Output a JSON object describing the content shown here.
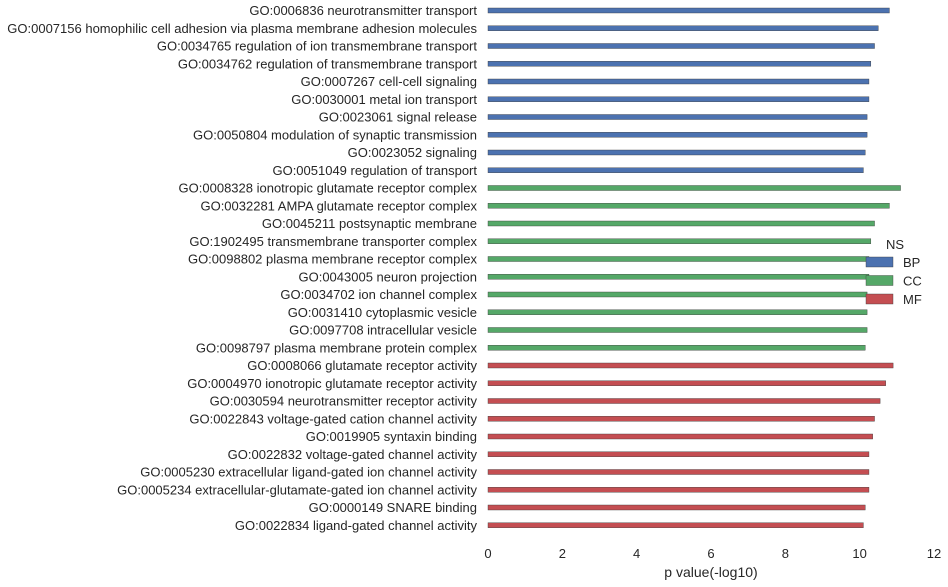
{
  "chart_data": {
    "type": "bar",
    "orientation": "horizontal",
    "title": "",
    "xlabel": "p value(-log10)",
    "ylabel": "",
    "xlim": [
      0,
      12
    ],
    "xticks": [
      "0",
      "2",
      "4",
      "6",
      "8",
      "10",
      "12"
    ],
    "grid": false,
    "legend": {
      "title": "NS",
      "placement": "right",
      "entries": [
        {
          "name": "BP",
          "color": "#4c72b0"
        },
        {
          "name": "CC",
          "color": "#55a868"
        },
        {
          "name": "MF",
          "color": "#c44e52"
        }
      ]
    },
    "categories": [
      {
        "label": "GO:0006836 neurotransmitter transport",
        "value": 10.8,
        "group": "BP"
      },
      {
        "label": "GO:0007156 homophilic cell adhesion via plasma membrane adhesion molecules",
        "value": 10.5,
        "group": "BP"
      },
      {
        "label": "GO:0034765 regulation of ion transmembrane transport",
        "value": 10.4,
        "group": "BP"
      },
      {
        "label": "GO:0034762 regulation of transmembrane transport",
        "value": 10.3,
        "group": "BP"
      },
      {
        "label": "GO:0007267 cell-cell signaling",
        "value": 10.25,
        "group": "BP"
      },
      {
        "label": "GO:0030001 metal ion transport",
        "value": 10.25,
        "group": "BP"
      },
      {
        "label": "GO:0023061 signal release",
        "value": 10.2,
        "group": "BP"
      },
      {
        "label": "GO:0050804 modulation of synaptic transmission",
        "value": 10.2,
        "group": "BP"
      },
      {
        "label": "GO:0023052 signaling",
        "value": 10.15,
        "group": "BP"
      },
      {
        "label": "GO:0051049 regulation of transport",
        "value": 10.1,
        "group": "BP"
      },
      {
        "label": "GO:0008328 ionotropic glutamate receptor complex",
        "value": 11.1,
        "group": "CC"
      },
      {
        "label": "GO:0032281 AMPA glutamate receptor complex",
        "value": 10.8,
        "group": "CC"
      },
      {
        "label": "GO:0045211 postsynaptic membrane",
        "value": 10.4,
        "group": "CC"
      },
      {
        "label": "GO:1902495 transmembrane transporter complex",
        "value": 10.3,
        "group": "CC"
      },
      {
        "label": "GO:0098802 plasma membrane receptor complex",
        "value": 10.25,
        "group": "CC"
      },
      {
        "label": "GO:0043005 neuron projection",
        "value": 10.25,
        "group": "CC"
      },
      {
        "label": "GO:0034702 ion channel complex",
        "value": 10.2,
        "group": "CC"
      },
      {
        "label": "GO:0031410 cytoplasmic vesicle",
        "value": 10.2,
        "group": "CC"
      },
      {
        "label": "GO:0097708 intracellular vesicle",
        "value": 10.2,
        "group": "CC"
      },
      {
        "label": "GO:0098797 plasma membrane protein complex",
        "value": 10.15,
        "group": "CC"
      },
      {
        "label": "GO:0008066 glutamate receptor activity",
        "value": 10.9,
        "group": "MF"
      },
      {
        "label": "GO:0004970 ionotropic glutamate receptor activity",
        "value": 10.7,
        "group": "MF"
      },
      {
        "label": "GO:0030594 neurotransmitter receptor activity",
        "value": 10.55,
        "group": "MF"
      },
      {
        "label": "GO:0022843 voltage-gated cation channel activity",
        "value": 10.4,
        "group": "MF"
      },
      {
        "label": "GO:0019905 syntaxin binding",
        "value": 10.35,
        "group": "MF"
      },
      {
        "label": "GO:0022832 voltage-gated channel activity",
        "value": 10.25,
        "group": "MF"
      },
      {
        "label": "GO:0005230 extracellular ligand-gated ion channel activity",
        "value": 10.25,
        "group": "MF"
      },
      {
        "label": "GO:0005234 extracellular-glutamate-gated ion channel activity",
        "value": 10.25,
        "group": "MF"
      },
      {
        "label": "GO:0000149 SNARE binding",
        "value": 10.15,
        "group": "MF"
      },
      {
        "label": "GO:0022834 ligand-gated channel activity",
        "value": 10.1,
        "group": "MF"
      }
    ]
  }
}
